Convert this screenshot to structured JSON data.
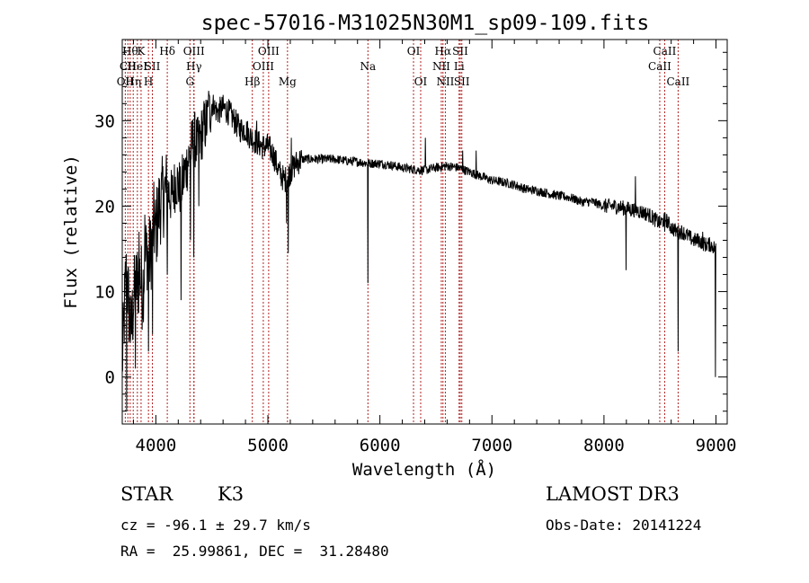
{
  "chart_data": {
    "type": "line",
    "title": "spec-57016-M31025N30M1_sp09-109.fits",
    "xlabel": "Wavelength (Å)",
    "ylabel": "Flux (relative)",
    "xlim": [
      3700,
      9100
    ],
    "ylim": [
      -5.5,
      39.5
    ],
    "xticks": [
      4000,
      5000,
      6000,
      7000,
      8000,
      9000
    ],
    "yticks": [
      0,
      10,
      20,
      30
    ],
    "xminor_step": 200,
    "yminor_step": 2,
    "grid": false,
    "spectrum_anchors": {
      "x": [
        3700,
        3710,
        3725,
        3740,
        3760,
        3780,
        3800,
        3830,
        3860,
        3880,
        3900,
        3920,
        3950,
        3980,
        4000,
        4030,
        4060,
        4100,
        4140,
        4180,
        4220,
        4260,
        4300,
        4340,
        4380,
        4420,
        4460,
        4500,
        4550,
        4600,
        4650,
        4700,
        4750,
        4800,
        4850,
        4900,
        4950,
        5000,
        5050,
        5100,
        5150,
        5200,
        5250,
        5300,
        5400,
        5500,
        5600,
        5700,
        5800,
        5900,
        6000,
        6100,
        6200,
        6300,
        6400,
        6500,
        6600,
        6700,
        6800,
        6900,
        7000,
        7100,
        7200,
        7300,
        7400,
        7500,
        7600,
        7700,
        7800,
        7900,
        8000,
        8100,
        8200,
        8300,
        8400,
        8500,
        8550,
        8600,
        8650,
        8700,
        8750,
        8800,
        8850,
        8900,
        8950,
        9000
      ],
      "y": [
        2,
        4,
        10,
        12,
        8,
        5,
        9,
        11,
        12,
        10,
        13,
        15,
        14,
        18,
        17,
        20,
        21,
        22,
        21,
        23,
        22,
        24,
        26,
        28,
        27,
        29,
        30,
        32,
        31,
        31.5,
        31,
        30,
        29,
        29,
        28,
        27.5,
        27,
        27,
        26,
        24,
        23,
        24,
        25,
        25.5,
        25.5,
        25.5,
        25.5,
        25.3,
        25.2,
        25,
        25,
        24.8,
        24.5,
        24.3,
        24.2,
        24.5,
        24.7,
        24.5,
        24,
        23.5,
        23,
        22.8,
        22.5,
        22,
        21.8,
        21.5,
        21.2,
        21,
        20.5,
        20.5,
        20,
        20,
        19.7,
        19.5,
        19,
        18,
        18.5,
        17.5,
        17,
        17,
        16.5,
        16,
        16,
        15.5,
        15.5,
        15
      ]
    },
    "absorption_features": [
      {
        "x": 3740,
        "y": -4
      },
      {
        "x": 3818,
        "y": 1
      },
      {
        "x": 3934,
        "y": 3
      },
      {
        "x": 3969,
        "y": 5
      },
      {
        "x": 4102,
        "y": 12
      },
      {
        "x": 4226,
        "y": 9
      },
      {
        "x": 4308,
        "y": 16
      },
      {
        "x": 4340,
        "y": 14
      },
      {
        "x": 4383,
        "y": 20
      },
      {
        "x": 5168,
        "y": 18
      },
      {
        "x": 5183,
        "y": 14.5
      },
      {
        "x": 5893,
        "y": 11
      },
      {
        "x": 8197,
        "y": 12.5
      },
      {
        "x": 8543,
        "y": 17
      },
      {
        "x": 8662,
        "y": 3
      },
      {
        "x": 8995,
        "y": 0
      }
    ],
    "emission_features": [
      {
        "x": 3850,
        "y": 17
      },
      {
        "x": 3900,
        "y": 19
      },
      {
        "x": 4470,
        "y": 33.5
      },
      {
        "x": 4520,
        "y": 31.5
      },
      {
        "x": 4900,
        "y": 30
      },
      {
        "x": 5210,
        "y": 28
      },
      {
        "x": 6405,
        "y": 28
      },
      {
        "x": 6738,
        "y": 26.5
      },
      {
        "x": 6860,
        "y": 26.5
      },
      {
        "x": 8280,
        "y": 23.5
      },
      {
        "x": 8880,
        "y": 17
      }
    ],
    "line_markers": [
      {
        "x": 3727,
        "label": "OII",
        "row": 2
      },
      {
        "x": 3750,
        "label": "CII",
        "row": 1
      },
      {
        "x": 3771,
        "label": "Hθ",
        "row": 0
      },
      {
        "x": 3798,
        "label": "Hη",
        "row": 2
      },
      {
        "x": 3835,
        "label": "HeI",
        "row": 1
      },
      {
        "x": 3868,
        "label": "K",
        "row": 0
      },
      {
        "x": 3934,
        "label": "H",
        "row": 2
      },
      {
        "x": 3969,
        "label": "SII",
        "row": 1
      },
      {
        "x": 4102,
        "label": "Hδ",
        "row": 0
      },
      {
        "x": 4304,
        "label": "G",
        "row": 2
      },
      {
        "x": 4340,
        "label": "OIII",
        "row": 0
      },
      {
        "x": 4340,
        "label": "Hγ",
        "row": 1
      },
      {
        "x": 4861,
        "label": "Hβ",
        "row": 2
      },
      {
        "x": 4959,
        "label": "OIII",
        "row": 1
      },
      {
        "x": 5007,
        "label": "OIII",
        "row": 0
      },
      {
        "x": 5175,
        "label": "Mg",
        "row": 2
      },
      {
        "x": 5893,
        "label": "Na",
        "row": 1
      },
      {
        "x": 6300,
        "label": "OI",
        "row": 0
      },
      {
        "x": 6364,
        "label": "OI",
        "row": 2
      },
      {
        "x": 6548,
        "label": "NII",
        "row": 1
      },
      {
        "x": 6563,
        "label": "Hα",
        "row": 0
      },
      {
        "x": 6584,
        "label": "NII",
        "row": 2
      },
      {
        "x": 6707,
        "label": "Li",
        "row": 1
      },
      {
        "x": 6717,
        "label": "SII",
        "row": 0
      },
      {
        "x": 6731,
        "label": "SII",
        "row": 2
      },
      {
        "x": 8498,
        "label": "CaII",
        "row": 1
      },
      {
        "x": 8542,
        "label": "CaII",
        "row": 0
      },
      {
        "x": 8662,
        "label": "CaII",
        "row": 2
      }
    ],
    "marker_color": "#b22222",
    "line_color": "#000000"
  },
  "info": {
    "object_class": "STAR",
    "subclass": "K3",
    "survey": "LAMOST DR3",
    "cz": "cz = -96.1 ± 29.7 km/s",
    "obs_date": "Obs-Date: 20141224",
    "coords": "RA =  25.99861, DEC =  31.28480"
  }
}
